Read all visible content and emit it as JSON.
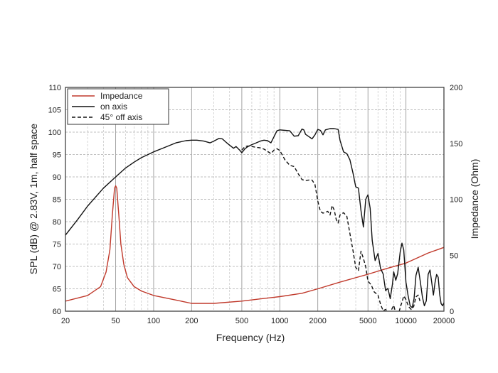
{
  "chart_data": {
    "type": "line",
    "title": "",
    "xlabel": "Frequency (Hz)",
    "ylabel": "SPL (dB) @ 2.83V, 1m, half space",
    "y2label": "Impedance (Ohm)",
    "x_scale": "log",
    "xlim": [
      20,
      20000
    ],
    "ylim": [
      60,
      110
    ],
    "y2lim": [
      0,
      200
    ],
    "grid": true,
    "legend_position": "top-left",
    "x_ticks": [
      20,
      50,
      100,
      200,
      500,
      1000,
      2000,
      5000,
      10000,
      20000
    ],
    "x_tick_labels": [
      "20",
      "50",
      "100",
      "200",
      "500",
      "1000",
      "2000",
      "5000",
      "10000",
      "20000"
    ],
    "y_ticks": [
      60,
      65,
      70,
      75,
      80,
      85,
      90,
      95,
      100,
      105,
      110
    ],
    "y_tick_labels": [
      "60",
      "65",
      "70",
      "75",
      "80",
      "85",
      "90",
      "95",
      "100",
      "105",
      "110"
    ],
    "y2_ticks": [
      0,
      50,
      100,
      150,
      200
    ],
    "y2_tick_labels": [
      "0",
      "50",
      "100",
      "150",
      "200"
    ],
    "series": [
      {
        "name": "Impedance",
        "axis": "right",
        "color": "#c0392b",
        "dash": "solid",
        "x": [
          20,
          30,
          38,
          42,
          45,
          47,
          49,
          50,
          51,
          53,
          55,
          58,
          62,
          70,
          80,
          100,
          150,
          200,
          300,
          500,
          700,
          1000,
          1500,
          2000,
          3000,
          5000,
          7000,
          10000,
          15000,
          20000
        ],
        "y": [
          9,
          14,
          22,
          35,
          55,
          85,
          110,
          112,
          110,
          85,
          60,
          42,
          30,
          22,
          18,
          14,
          10,
          7,
          7,
          9,
          11,
          13,
          16,
          20,
          26,
          33,
          38,
          43,
          52,
          57
        ]
      },
      {
        "name": "on axis",
        "axis": "left",
        "color": "#111111",
        "dash": "solid",
        "x": [
          20,
          25,
          30,
          40,
          50,
          60,
          70,
          80,
          100,
          120,
          150,
          180,
          200,
          220,
          250,
          280,
          300,
          330,
          350,
          380,
          400,
          430,
          450,
          480,
          500,
          530,
          560,
          600,
          650,
          700,
          750,
          800,
          850,
          900,
          950,
          1000,
          1100,
          1200,
          1300,
          1400,
          1500,
          1550,
          1600,
          1700,
          1800,
          1900,
          2000,
          2100,
          2200,
          2300,
          2500,
          2700,
          2900,
          3000,
          3200,
          3400,
          3600,
          3800,
          4000,
          4200,
          4400,
          4600,
          4800,
          5000,
          5200,
          5400,
          5700,
          6000,
          6300,
          6600,
          6900,
          7200,
          7500,
          7800,
          8000,
          8300,
          8600,
          9000,
          9300,
          9600,
          10000,
          10400,
          10800,
          11200,
          11600,
          12000,
          12500,
          13000,
          13500,
          14000,
          14500,
          15000,
          15500,
          16000,
          16500,
          17000,
          17500,
          18000,
          18500,
          19000,
          19500,
          20000
        ],
        "y": [
          77,
          80.5,
          83.5,
          87.5,
          90,
          92,
          93.3,
          94.3,
          95.6,
          96.5,
          97.6,
          98.1,
          98.2,
          98.2,
          98.0,
          97.6,
          98.0,
          98.6,
          98.5,
          97.6,
          97.1,
          96.4,
          96.8,
          96.0,
          95.4,
          96.3,
          96.8,
          97.2,
          97.6,
          98.0,
          98.2,
          98.1,
          97.6,
          99.0,
          100.3,
          100.5,
          100.4,
          100.3,
          99.1,
          99.2,
          100.7,
          100.5,
          99.5,
          99.0,
          98.5,
          99.4,
          100.6,
          100.4,
          99.4,
          100.5,
          100.8,
          100.8,
          100.6,
          98.2,
          95.6,
          95.2,
          93.8,
          90.9,
          87.8,
          87.5,
          82.5,
          78.8,
          85,
          86,
          83,
          75.8,
          71.3,
          72.9,
          69.5,
          68.3,
          64.6,
          65.1,
          62.8,
          65.9,
          68.8,
          66.9,
          68.4,
          73.2,
          75.2,
          73.7,
          66.5,
          63.5,
          61.2,
          60.8,
          62.8,
          68.0,
          69.8,
          66.6,
          63.2,
          61.2,
          62.3,
          68.2,
          69.2,
          66.5,
          63.6,
          66.4,
          68.2,
          67.6,
          63.8,
          61.7,
          61.2,
          61.9
        ]
      },
      {
        "name": "45° off axis",
        "axis": "left",
        "color": "#111111",
        "dash": "dashed",
        "x": [
          500,
          530,
          560,
          600,
          650,
          700,
          750,
          800,
          850,
          900,
          950,
          1000,
          1100,
          1200,
          1300,
          1400,
          1500,
          1600,
          1700,
          1800,
          1900,
          2000,
          2100,
          2200,
          2300,
          2400,
          2500,
          2600,
          2700,
          2800,
          2900,
          3000,
          3200,
          3400,
          3600,
          3800,
          4000,
          4200,
          4400,
          4600,
          4800,
          5000,
          5300,
          5600,
          6000,
          6300,
          6600,
          6900,
          7200,
          7500,
          7800,
          8000,
          8300,
          8600,
          9000,
          9300,
          9600,
          10000,
          10500,
          11000,
          11500,
          12000,
          12500,
          13000
        ],
        "y": [
          96,
          96.8,
          96.9,
          96.8,
          96.6,
          96.5,
          96.2,
          95.7,
          95.2,
          96.0,
          96.3,
          95.9,
          93.8,
          92.6,
          92.3,
          90.7,
          89.4,
          89.2,
          89.3,
          89.3,
          88.3,
          84.6,
          82.3,
          81.9,
          82.1,
          82.3,
          81.5,
          83.6,
          82.6,
          80.5,
          79.7,
          81.5,
          82.0,
          81.2,
          77.3,
          73.6,
          69.8,
          69.0,
          73.4,
          71.8,
          69.9,
          66.7,
          65.9,
          64.3,
          63.6,
          61.5,
          60.1,
          60.4,
          59.8,
          59.7,
          60.7,
          61.3,
          59.6,
          58.7,
          60.8,
          62.0,
          63.4,
          62.6,
          61.0,
          60.4,
          61.0,
          63.2,
          63.6,
          62.0
        ]
      }
    ]
  }
}
